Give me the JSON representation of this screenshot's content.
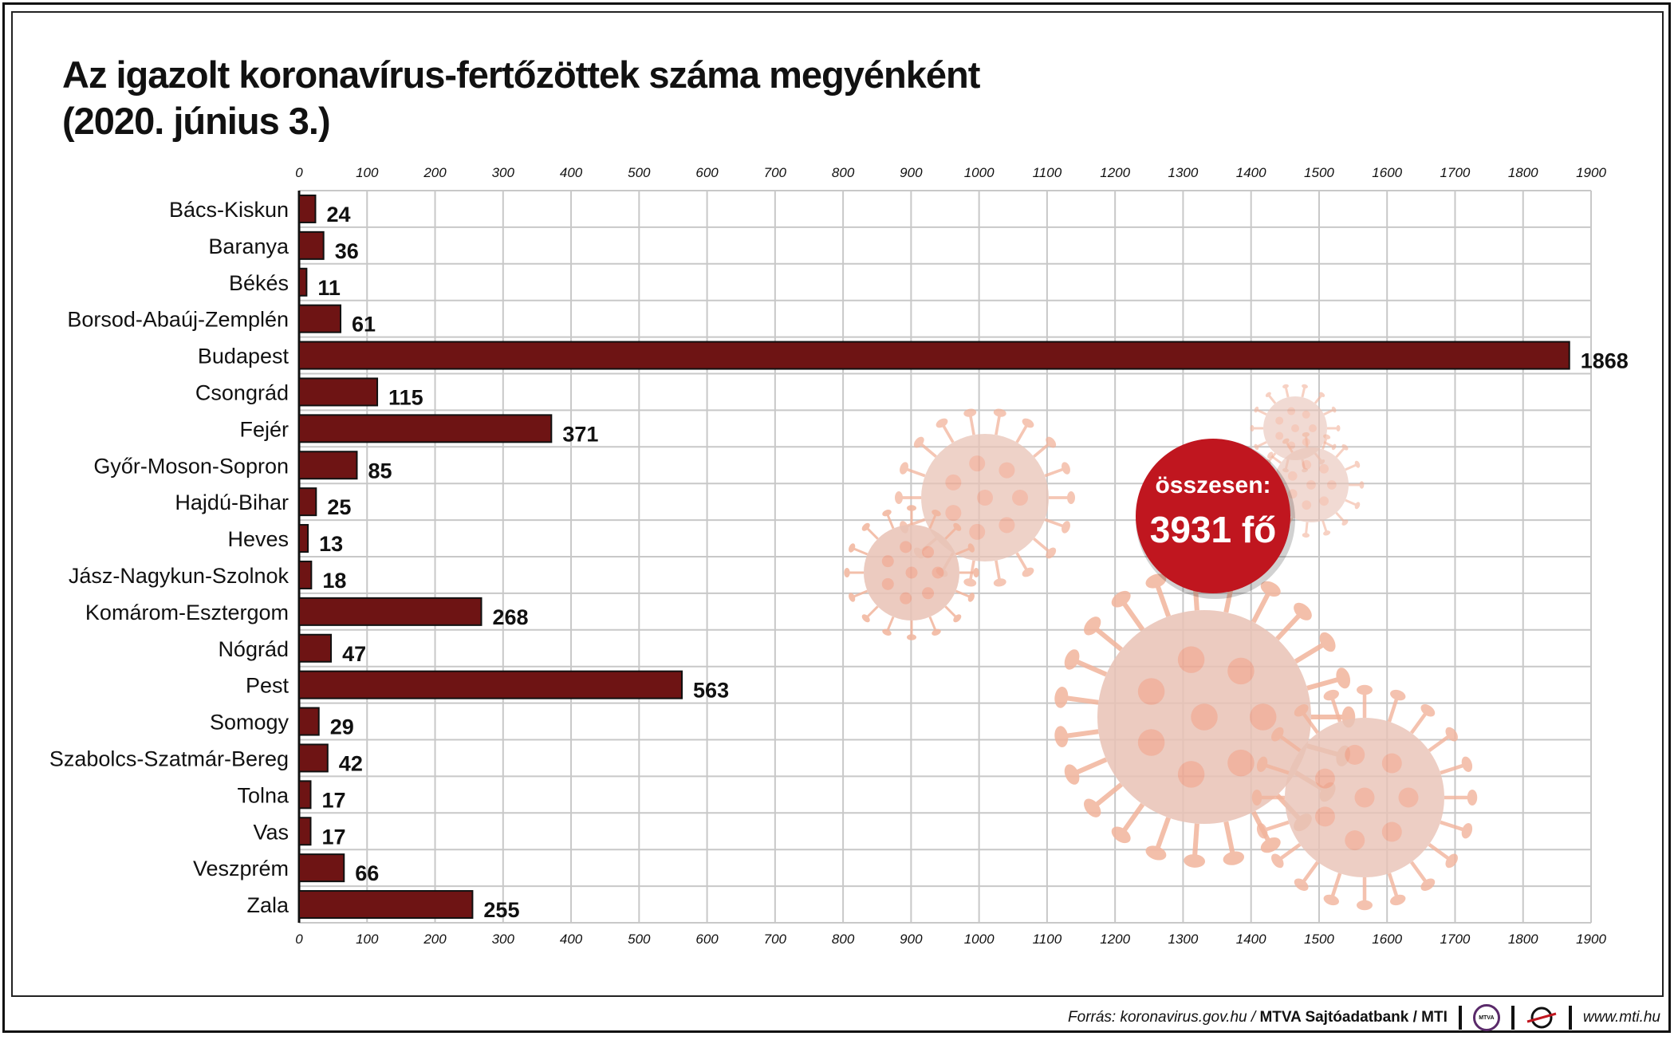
{
  "title_line1": "Az igazolt koronavírus-fertőzöttek száma megyénként",
  "title_line2": "(2020. június 3.)",
  "total": {
    "label": "összesen:",
    "value": "3931 fő",
    "color": "#c0161f"
  },
  "footer": {
    "source_prefix": "Forrás: koronavirus.gov.hu /",
    "source_bold": "MTVA Sajtóadatbank / MTI",
    "logo1": "MTVA",
    "url": "www.mti.hu"
  },
  "colors": {
    "bar": "#6e1414",
    "grid": "#c8c8c8",
    "virus": "#f2b49c"
  },
  "chart_data": {
    "type": "bar",
    "orientation": "horizontal",
    "grid": true,
    "xlim": [
      0,
      1900
    ],
    "ticks": [
      "0",
      "100",
      "200",
      "300",
      "400",
      "500",
      "600",
      "700",
      "800",
      "900",
      "1000",
      "1100",
      "1200",
      "1300",
      "1400",
      "1500",
      "1600",
      "1700",
      "1800",
      "1900"
    ],
    "categories": [
      "Bács-Kiskun",
      "Baranya",
      "Békés",
      "Borsod-Abaúj-Zemplén",
      "Budapest",
      "Csongrád",
      "Fejér",
      "Győr-Moson-Sopron",
      "Hajdú-Bihar",
      "Heves",
      "Jász-Nagykun-Szolnok",
      "Komárom-Esztergom",
      "Nógrád",
      "Pest",
      "Somogy",
      "Szabolcs-Szatmár-Bereg",
      "Tolna",
      "Vas",
      "Veszprém",
      "Zala"
    ],
    "values": [
      24,
      36,
      11,
      61,
      1868,
      115,
      371,
      85,
      25,
      13,
      18,
      268,
      47,
      563,
      29,
      42,
      17,
      17,
      66,
      255
    ]
  }
}
